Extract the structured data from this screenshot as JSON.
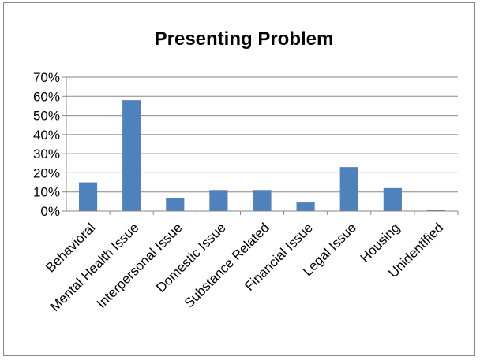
{
  "chart_data": {
    "type": "bar",
    "title": "Presenting Problem",
    "xlabel": "",
    "ylabel": "",
    "categories": [
      "Behavioral",
      "Mental Health Issue",
      "Interpersonal Issue",
      "Domestic Issue",
      "Substance Related",
      "Financial Issue",
      "Legal Issue",
      "Housing",
      "Unidentified"
    ],
    "values": [
      15,
      58,
      7,
      11,
      11,
      4.5,
      23,
      12,
      0.5
    ],
    "ylim": [
      0,
      70
    ],
    "yticks": [
      "0%",
      "10%",
      "20%",
      "30%",
      "40%",
      "50%",
      "60%",
      "70%"
    ],
    "grid": true,
    "legend": "none",
    "bar_color": "#4f81bd"
  }
}
